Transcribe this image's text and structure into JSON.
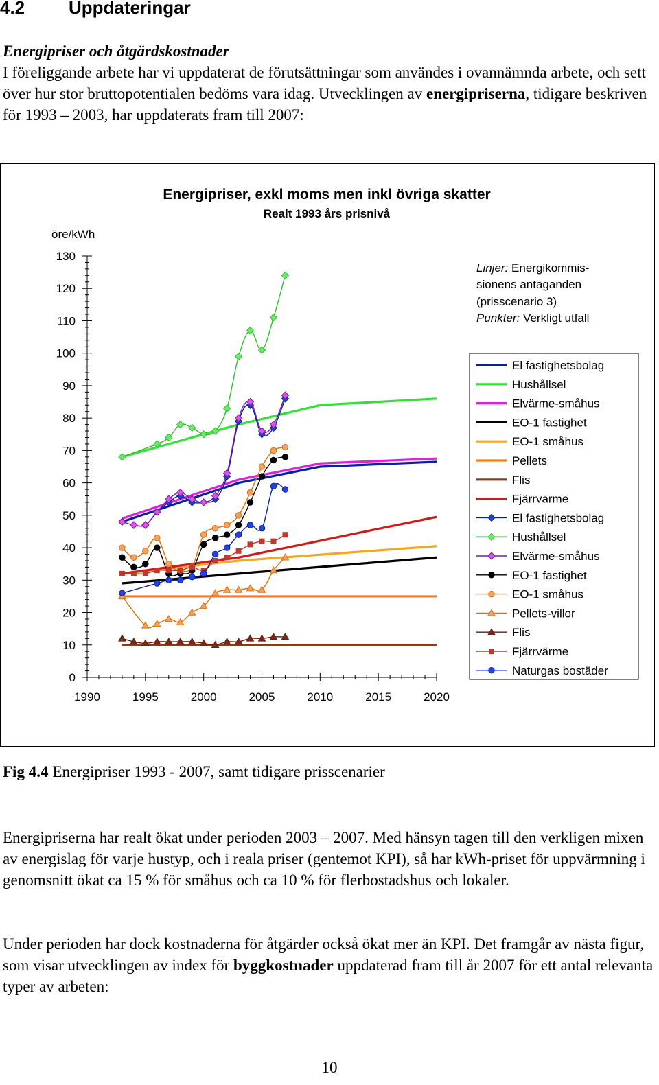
{
  "heading": {
    "number": "4.2",
    "title": "Uppdateringar"
  },
  "subheading": "Energipriser och åtgärdskostnader",
  "intro": {
    "part1": "I föreliggande arbete har vi uppdaterat de förutsättningar som användes i ovannämnda arbete, och sett över hur stor bruttopotentialen bedöms vara idag. Utvecklingen av ",
    "bold": "energipriserna",
    "part2": ", tidigare beskriven för 1993 – 2003, har uppdaterats fram till 2007:"
  },
  "chart_data": {
    "type": "line",
    "title": "Energipriser, exkl moms men inkl övriga skatter",
    "subtitle": "Realt 1993 års prisnivå",
    "ylabel": "öre/kWh",
    "xlabel": "",
    "xlim": [
      1990,
      2020
    ],
    "ylim": [
      0,
      130
    ],
    "xticks": [
      1990,
      1995,
      2000,
      2005,
      2010,
      2015,
      2020
    ],
    "yticks": [
      0,
      10,
      20,
      30,
      40,
      50,
      60,
      70,
      80,
      90,
      100,
      110,
      120,
      130
    ],
    "grid": false,
    "annotation": {
      "linjer_label": "Linjer:",
      "linjer_text1": "Energikommis-",
      "linjer_text2": "sionens antaganden",
      "linjer_text3": "(prisscenario 3)",
      "punkter_label": "Punkter:",
      "punkter_text": "Verkligt utfall"
    },
    "legend_position": "right",
    "scenario_lines": [
      {
        "name": "El fastighetsbolag",
        "color": "#0a1fa8",
        "x": [
          1993,
          2003,
          2010,
          2020
        ],
        "y": [
          48,
          60,
          65,
          66.5
        ]
      },
      {
        "name": "Hushållsel",
        "color": "#33e033",
        "x": [
          1993,
          2003,
          2010,
          2020
        ],
        "y": [
          68,
          78,
          84,
          86
        ]
      },
      {
        "name": "Elvärme-småhus",
        "color": "#dd22dd",
        "x": [
          1993,
          2003,
          2010,
          2020
        ],
        "y": [
          49,
          61,
          66,
          67.5
        ]
      },
      {
        "name": "EO-1 fastighet",
        "color": "#000000",
        "x": [
          1993,
          2003,
          2020
        ],
        "y": [
          29,
          32,
          37
        ]
      },
      {
        "name": "EO-1 småhus",
        "color": "#f5a623",
        "x": [
          1993,
          2003,
          2020
        ],
        "y": [
          32,
          36,
          40.5
        ]
      },
      {
        "name": "Pellets",
        "color": "#f07a2a",
        "x": [
          1993,
          2020
        ],
        "y": [
          25,
          25
        ]
      },
      {
        "name": "Flis",
        "color": "#8b3a1a",
        "x": [
          1993,
          2020
        ],
        "y": [
          10,
          10
        ]
      },
      {
        "name": "Fjärrvärme",
        "color": "#d11a1a",
        "x": [
          1993,
          2003,
          2020
        ],
        "y": [
          32,
          37,
          49.5
        ]
      }
    ],
    "series": [
      {
        "name": "El fastighetsbolag",
        "color": "#0a1fa8",
        "marker": "diamond",
        "fill": "#2244cc",
        "x": [
          1993,
          1994,
          1995,
          1996,
          1997,
          1998,
          1999,
          2000,
          2001,
          2002,
          2003,
          2004,
          2005,
          2006,
          2007
        ],
        "y": [
          48,
          47,
          47,
          51,
          54,
          56,
          54,
          54,
          55,
          62,
          79,
          84,
          75,
          77,
          86
        ]
      },
      {
        "name": "Hushållsel",
        "color": "#2fc02f",
        "marker": "diamond",
        "fill": "#66ee66",
        "x": [
          1993,
          1996,
          1997,
          1998,
          1999,
          2000,
          2001,
          2002,
          2003,
          2004,
          2005,
          2006,
          2007
        ],
        "y": [
          68,
          72,
          74,
          78,
          77,
          75,
          76,
          83,
          99,
          107,
          101,
          111,
          124
        ]
      },
      {
        "name": "Elvärme-småhus",
        "color": "#7a1aa8",
        "marker": "diamond",
        "fill": "#dd55dd",
        "x": [
          1993,
          1994,
          1995,
          1996,
          1997,
          1998,
          1999,
          2000,
          2001,
          2002,
          2003,
          2004,
          2005,
          2006,
          2007
        ],
        "y": [
          48,
          47,
          47,
          51,
          55,
          57,
          55,
          54,
          56,
          63,
          80,
          85,
          76,
          78,
          87
        ]
      },
      {
        "name": "EO-1 fastighet",
        "color": "#000000",
        "marker": "circle",
        "fill": "#000000",
        "x": [
          1993,
          1994,
          1995,
          1996,
          1997,
          1998,
          1999,
          2000,
          2001,
          2002,
          2003,
          2004,
          2005,
          2006,
          2007
        ],
        "y": [
          37,
          34,
          35,
          40,
          32,
          32,
          33,
          41,
          43,
          44,
          47,
          54,
          62,
          67,
          68
        ]
      },
      {
        "name": "EO-1 småhus",
        "color": "#e07000",
        "marker": "circle",
        "fill": "#f5a066",
        "x": [
          1993,
          1994,
          1995,
          1996,
          1997,
          1998,
          1999,
          2000,
          2001,
          2002,
          2003,
          2004,
          2005,
          2006,
          2007
        ],
        "y": [
          40,
          37,
          39,
          43,
          35,
          33,
          34,
          44,
          46,
          47,
          50,
          57,
          65,
          70,
          71
        ]
      },
      {
        "name": "Pellets-villor",
        "color": "#e07000",
        "marker": "triangle",
        "fill": "#f5a066",
        "x": [
          1993,
          1995,
          1996,
          1997,
          1998,
          1999,
          2000,
          2001,
          2002,
          2003,
          2004,
          2005,
          2006,
          2007
        ],
        "y": [
          25,
          16,
          16.5,
          18,
          17,
          20,
          22,
          26,
          27,
          27,
          27.5,
          27,
          33,
          37
        ]
      },
      {
        "name": "Flis",
        "color": "#6b1a0a",
        "marker": "triangle",
        "fill": "#7a2a1a",
        "x": [
          1993,
          1994,
          1995,
          1996,
          1997,
          1998,
          1999,
          2000,
          2001,
          2002,
          2003,
          2004,
          2005,
          2006,
          2007
        ],
        "y": [
          12,
          11,
          10.5,
          11,
          11,
          11,
          11,
          10.5,
          10,
          11,
          11,
          12,
          12,
          12.5,
          12.5
        ]
      },
      {
        "name": "Fjärrvärme",
        "color": "#c0392b",
        "marker": "square",
        "fill": "#c0392b",
        "x": [
          1993,
          1994,
          1995,
          1996,
          1997,
          1998,
          1999,
          2000,
          2001,
          2002,
          2003,
          2004,
          2005,
          2006,
          2007
        ],
        "y": [
          32,
          32,
          32,
          33,
          33,
          33,
          34,
          33,
          36,
          37,
          39,
          41,
          42,
          42,
          44
        ]
      },
      {
        "name": "Naturgas bostäder",
        "color": "#0a1fa8",
        "marker": "circle",
        "fill": "#2244dd",
        "x": [
          1993,
          1996,
          1997,
          1998,
          1999,
          2000,
          2001,
          2002,
          2003,
          2004,
          2005,
          2006,
          2007
        ],
        "y": [
          26,
          29,
          30,
          30,
          31,
          32,
          38,
          40,
          44,
          47,
          46,
          59,
          58
        ]
      }
    ],
    "legend": [
      {
        "label": "El fastighetsbolag",
        "color": "#0a1fa8",
        "style": "line"
      },
      {
        "label": "Hushållsel",
        "color": "#33e033",
        "style": "line"
      },
      {
        "label": "Elvärme-småhus",
        "color": "#dd22dd",
        "style": "line"
      },
      {
        "label": "EO-1 fastighet",
        "color": "#000000",
        "style": "line"
      },
      {
        "label": "EO-1 småhus",
        "color": "#f5a623",
        "style": "line"
      },
      {
        "label": "Pellets",
        "color": "#f07a2a",
        "style": "line"
      },
      {
        "label": "Flis",
        "color": "#8b3a1a",
        "style": "line"
      },
      {
        "label": "Fjärrvärme",
        "color": "#d11a1a",
        "style": "line"
      },
      {
        "label": "El fastighetsbolag",
        "color": "#0a1fa8",
        "style": "diamond",
        "fill": "#2244cc"
      },
      {
        "label": "Hushållsel",
        "color": "#2fc02f",
        "style": "diamond",
        "fill": "#66ee66"
      },
      {
        "label": "Elvärme-småhus",
        "color": "#7a1aa8",
        "style": "diamond",
        "fill": "#dd55dd"
      },
      {
        "label": "EO-1 fastighet",
        "color": "#000000",
        "style": "circle",
        "fill": "#000000"
      },
      {
        "label": "EO-1 småhus",
        "color": "#e07000",
        "style": "circle",
        "fill": "#f5a066"
      },
      {
        "label": "Pellets-villor",
        "color": "#e07000",
        "style": "triangle",
        "fill": "#f5a066"
      },
      {
        "label": "Flis",
        "color": "#6b1a0a",
        "style": "triangle",
        "fill": "#7a2a1a"
      },
      {
        "label": "Fjärrvärme",
        "color": "#c0392b",
        "style": "square",
        "fill": "#c0392b"
      },
      {
        "label": "Naturgas bostäder",
        "color": "#0a1fa8",
        "style": "circle",
        "fill": "#2244dd"
      }
    ]
  },
  "caption": {
    "label": "Fig 4.4",
    "text": "Energipriser 1993 - 2007, samt tidigare prisscenarier"
  },
  "para2": "Energipriserna har realt ökat under perioden 2003 – 2007. Med hänsyn tagen till den verkligen mixen av energislag för varje hustyp, och i reala priser (gentemot KPI), så har kWh-priset för uppvärmning i genomsnitt ökat ca 15 % för småhus och ca 10 % för flerbostadshus och lokaler.",
  "para3": {
    "part1": "Under perioden har dock kostnaderna för åtgärder också ökat mer än KPI. Det framgår av nästa figur, som visar utvecklingen av index för ",
    "bold": "byggkostnader",
    "part2": " uppdaterad fram till år 2007 för ett antal relevanta typer av arbeten:"
  },
  "page_number": "10"
}
